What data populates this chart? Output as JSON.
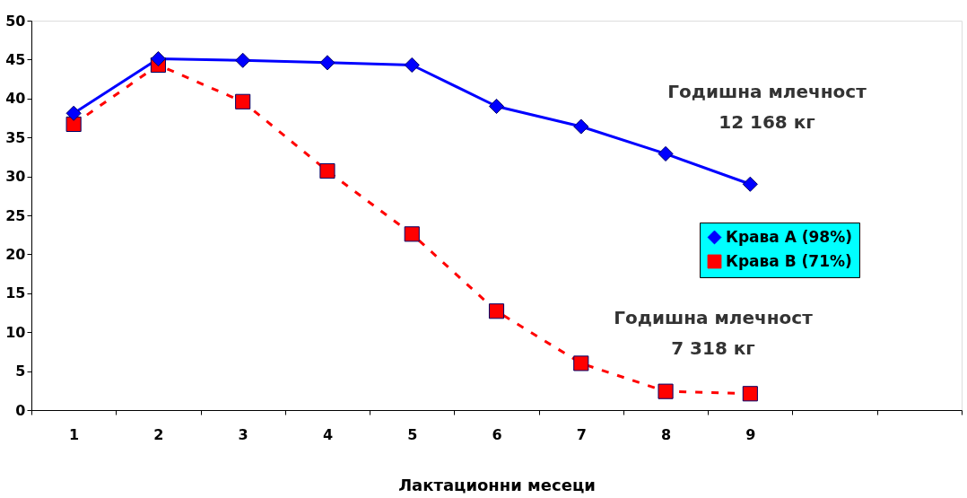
{
  "chart_data": {
    "type": "line",
    "xlabel": "Лактационни месеци",
    "categories": [
      "1",
      "2",
      "3",
      "4",
      "5",
      "6",
      "7",
      "8",
      "9",
      null,
      null
    ],
    "series": [
      {
        "name": "Крава А (98%)",
        "color": "#0000ff",
        "marker": "diamond",
        "line_style": "solid",
        "values": [
          38.1,
          45.1,
          44.9,
          44.6,
          44.3,
          39.0,
          36.4,
          32.9,
          29.0,
          null,
          null
        ]
      },
      {
        "name": "Крава В (71%)",
        "color": "#ff0000",
        "marker": "square",
        "line_style": "dashed",
        "values": [
          36.7,
          44.3,
          39.6,
          30.7,
          22.6,
          12.7,
          6.0,
          2.4,
          2.1,
          null,
          null
        ]
      }
    ],
    "ylim": [
      0,
      50
    ],
    "yticks": [
      0,
      5,
      10,
      15,
      20,
      25,
      30,
      35,
      40,
      45,
      50
    ],
    "grid": false,
    "legend": "right",
    "annotations": [
      "Годишна млечност\n12 168 кг",
      "Годишна млечност\n7 318 кг"
    ]
  }
}
